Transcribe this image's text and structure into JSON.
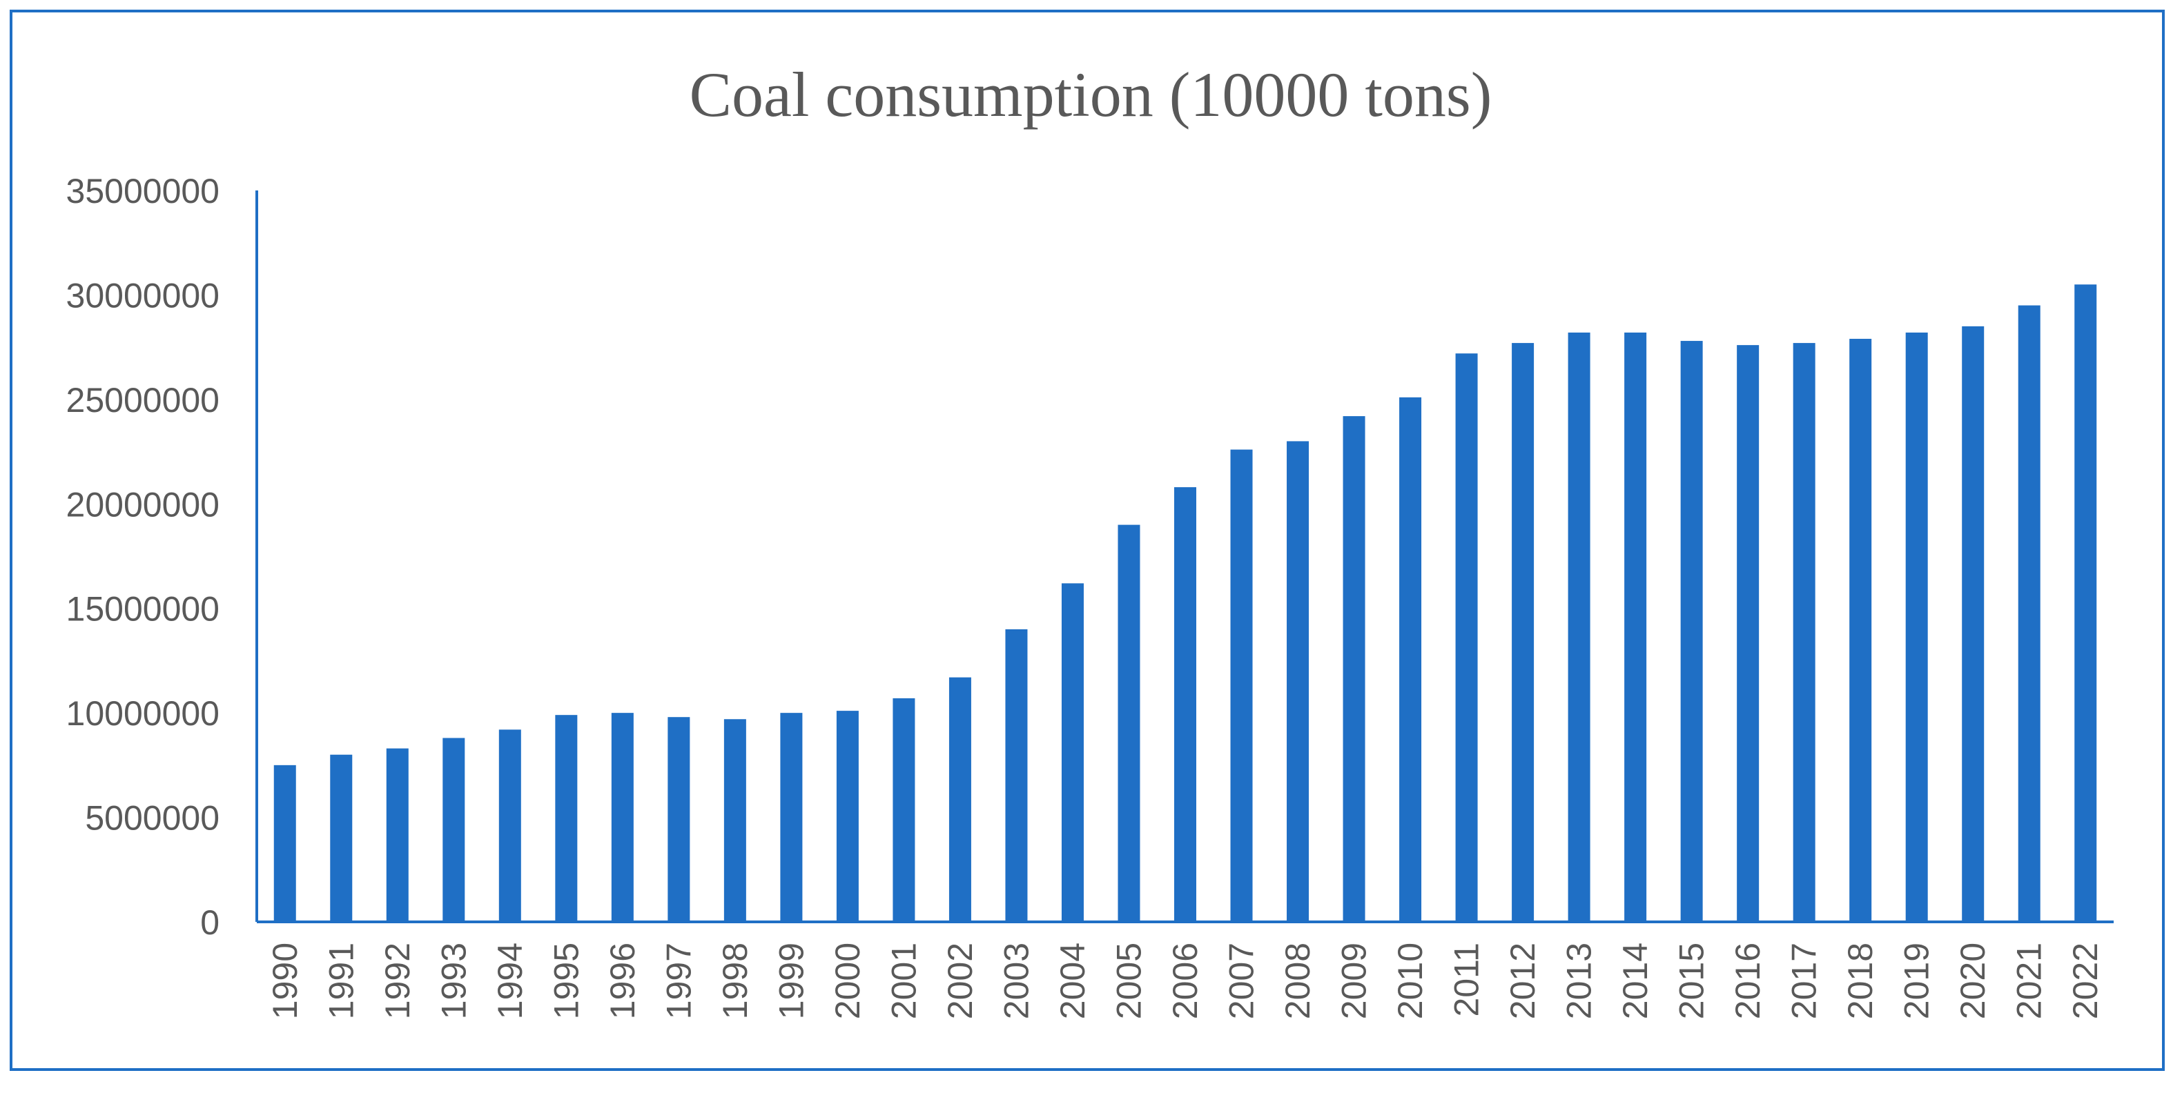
{
  "chart_data": {
    "type": "bar",
    "title": "Coal consumption (10000 tons)",
    "xlabel": "",
    "ylabel": "",
    "categories": [
      "1990",
      "1991",
      "1992",
      "1993",
      "1994",
      "1995",
      "1996",
      "1997",
      "1998",
      "1999",
      "2000",
      "2001",
      "2002",
      "2003",
      "2004",
      "2005",
      "2006",
      "2007",
      "2008",
      "2009",
      "2010",
      "2011",
      "2012",
      "2013",
      "2014",
      "2015",
      "2016",
      "2017",
      "2018",
      "2019",
      "2020",
      "2021",
      "2022"
    ],
    "values": [
      7500000,
      8000000,
      8300000,
      8800000,
      9200000,
      9900000,
      10000000,
      9800000,
      9700000,
      10000000,
      10100000,
      10700000,
      11700000,
      14000000,
      16200000,
      19000000,
      20800000,
      22600000,
      23000000,
      24200000,
      25100000,
      27200000,
      27700000,
      28200000,
      28200000,
      27800000,
      27600000,
      27700000,
      27900000,
      28200000,
      28500000,
      29500000,
      30500000
    ],
    "ylim": [
      0,
      35000000
    ],
    "yticks": [
      "0",
      "5000000",
      "10000000",
      "15000000",
      "20000000",
      "25000000",
      "30000000",
      "35000000"
    ],
    "grid": false,
    "legend": "none",
    "colors": {
      "bar": "#1f6fc5",
      "axis": "#1f6fc5",
      "frame": "#1f6fc5",
      "text": "#595959"
    }
  }
}
